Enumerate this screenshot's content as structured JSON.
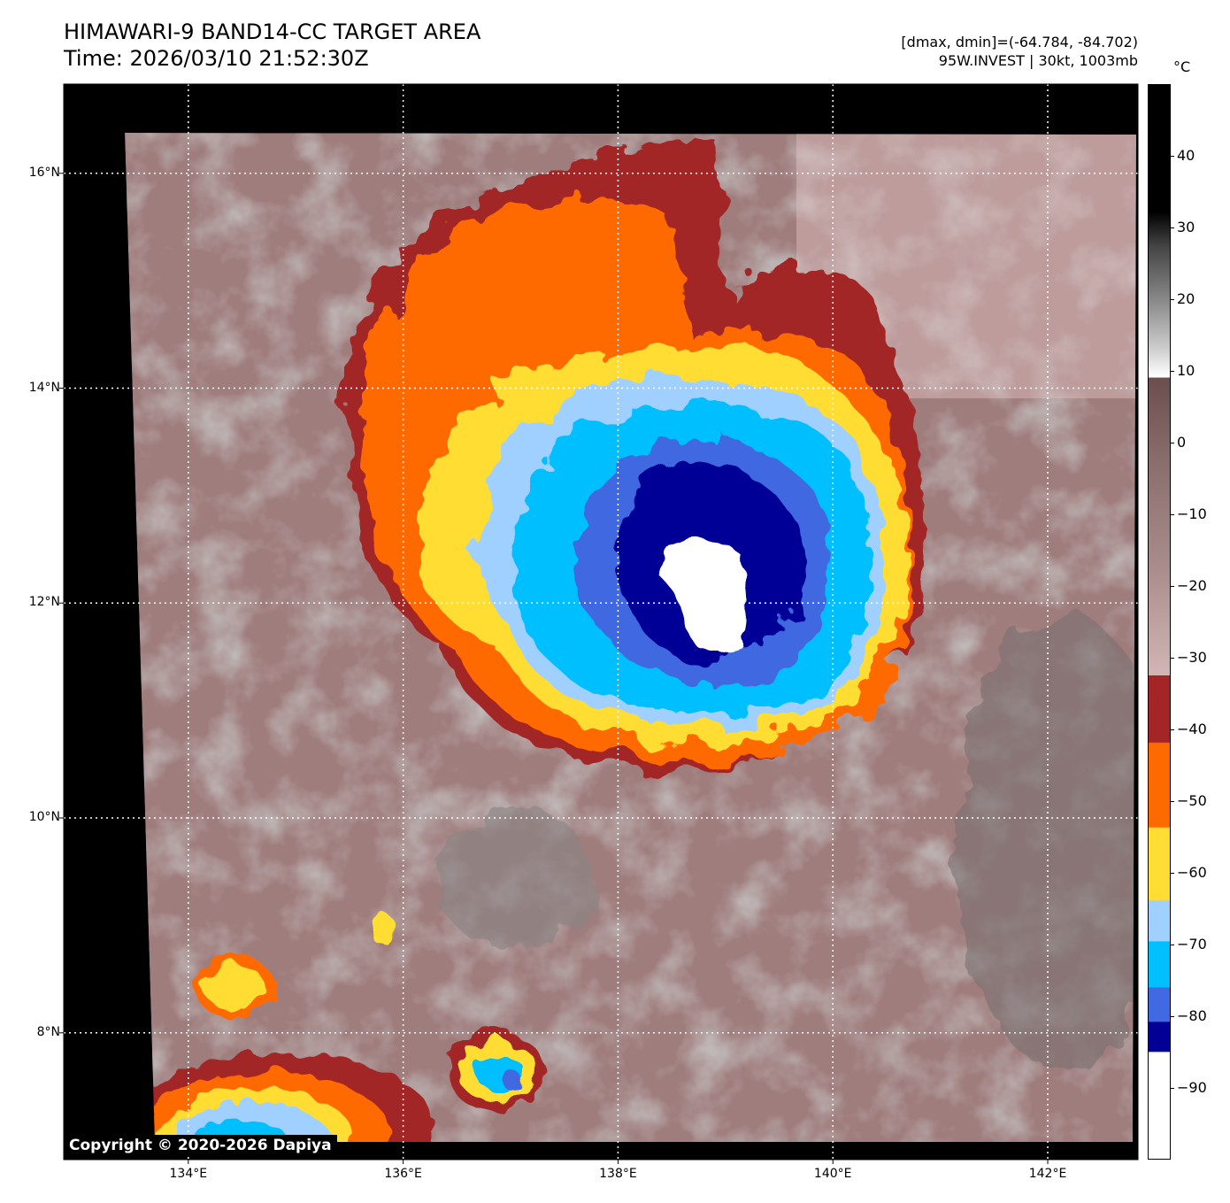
{
  "header": {
    "title": "HIMAWARI-9 BAND14-CC TARGET AREA",
    "time": "Time: 2026/03/10 21:52:30Z",
    "dmax_dmin": "[dmax, dmin]=(-64.784, -84.702)",
    "storm_info": "95W.INVEST | 30kt, 1003mb"
  },
  "colorbar": {
    "unit": "°C",
    "range": [
      -100,
      50
    ],
    "ticks": [
      "40",
      "30",
      "20",
      "10",
      "0",
      "−10",
      "−20",
      "−30",
      "−40",
      "−50",
      "−60",
      "−70",
      "−80",
      "−90"
    ],
    "tick_values": [
      40,
      30,
      20,
      10,
      0,
      -10,
      -20,
      -30,
      -40,
      -50,
      -60,
      -70,
      -80,
      -90
    ],
    "colors": {
      "black": "#000000",
      "brown": "#8a6d6d",
      "pink": "#fbdcdc",
      "darkred": "#a32525",
      "orange": "#ff6a00",
      "yellow": "#ffdd33",
      "lightblue": "#a0d0ff",
      "cyan": "#00bfff",
      "royalblue": "#4169e1",
      "navy": "#000096",
      "white": "#ffffff"
    }
  },
  "map": {
    "lon_range": [
      132.84,
      142.84
    ],
    "lat_range": [
      6.82,
      16.83
    ],
    "lon_ticks": [
      "134°E",
      "136°E",
      "138°E",
      "140°E",
      "142°E"
    ],
    "lon_values": [
      134,
      136,
      138,
      140,
      142
    ],
    "lat_ticks": [
      "16°N",
      "14°N",
      "12°N",
      "10°N",
      "8°N"
    ],
    "lat_values": [
      16,
      14,
      12,
      10,
      8
    ]
  },
  "copyright": "Copyright © 2020-2026 Dapiya"
}
